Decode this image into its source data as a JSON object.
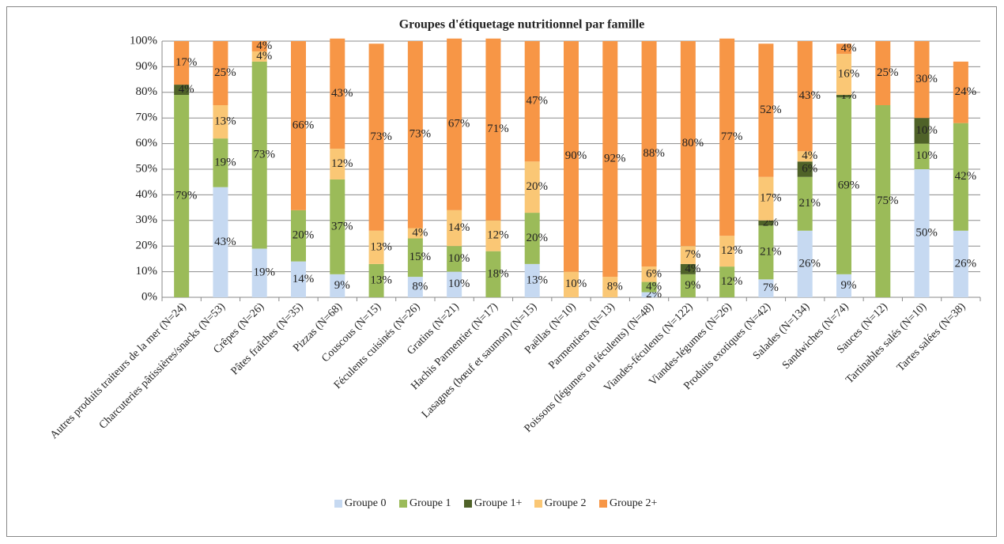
{
  "chart_data": {
    "type": "stacked_bar_100",
    "title": "Groupes d'étiquetage nutritionnel par famille",
    "categories": [
      "Autres produits traiteurs de la mer (N=24)",
      "Charcuteries pâtissières/snacks (N=53)",
      "Crêpes (N=26)",
      "Pâtes fraîches (N=35)",
      "Pizzas (N=68)",
      "Couscous (N=15)",
      "Féculents cuisinés (N=26)",
      "Gratins (N=21)",
      "Hachis Parmentier (N=17)",
      "Lasagnes (bœuf et saumon) (N=15)",
      "Paëllas (N=10)",
      "Parmentiers (N=13)",
      "Poissons (légumes ou féculents) (N=48)",
      "Viandes-féculents (N=122)",
      "Viandes-légumes (N=26)",
      "Produits exotiques (N=42)",
      "Salades (N=134)",
      "Sandwiches (N=74)",
      "Sauces (N=12)",
      "Tartinables salés (N=10)",
      "Tartes salées (N=38)"
    ],
    "series": [
      {
        "name": "Groupe 0",
        "color": "#c6d9f1",
        "values": [
          0,
          43,
          19,
          14,
          9,
          0,
          8,
          10,
          0,
          13,
          0,
          0,
          2,
          0,
          0,
          7,
          26,
          9,
          0,
          50,
          26
        ],
        "value_labels": [
          null,
          "43%",
          "19%",
          "14%",
          "9%",
          null,
          "8%",
          "10%",
          null,
          "13%",
          null,
          null,
          "2%",
          null,
          null,
          "7%",
          "26%",
          "9%",
          null,
          "50%",
          "26%"
        ]
      },
      {
        "name": "Groupe 1",
        "color": "#9bbb59",
        "values": [
          79,
          19,
          73,
          20,
          37,
          13,
          15,
          10,
          18,
          20,
          0,
          0,
          4,
          9,
          12,
          21,
          21,
          69,
          75,
          10,
          42
        ],
        "value_labels": [
          "79%",
          "19%",
          "73%",
          "20%",
          "37%",
          "13%",
          "15%",
          "10%",
          "18%",
          "20%",
          null,
          null,
          "4%",
          "9%",
          "12%",
          "21%",
          "21%",
          "69%",
          "75%",
          "10%",
          "42%"
        ]
      },
      {
        "name": "Groupe 1+",
        "color": "#4f6228",
        "values": [
          4,
          0,
          0,
          0,
          0,
          0,
          0,
          0,
          0,
          0,
          0,
          0,
          0,
          4,
          0,
          2,
          6,
          1,
          0,
          10,
          0
        ],
        "value_labels": [
          "4%",
          null,
          null,
          null,
          null,
          null,
          null,
          null,
          null,
          null,
          null,
          null,
          null,
          "4%",
          null,
          "2%",
          "6%",
          "1%",
          null,
          "10%",
          null
        ]
      },
      {
        "name": "Groupe 2",
        "color": "#fac775",
        "values": [
          0,
          13,
          4,
          0,
          12,
          13,
          4,
          14,
          12,
          20,
          10,
          8,
          6,
          7,
          12,
          17,
          4,
          16,
          0,
          0,
          0
        ],
        "value_labels": [
          null,
          "13%",
          "4%",
          null,
          "12%",
          "13%",
          "4%",
          "14%",
          "12%",
          "20%",
          "10%",
          "8%",
          "6%",
          "7%",
          "12%",
          "17%",
          "4%",
          "16%",
          null,
          null,
          null
        ]
      },
      {
        "name": "Groupe 2+",
        "color": "#f79646",
        "values": [
          17,
          25,
          4,
          66,
          43,
          73,
          73,
          67,
          71,
          47,
          90,
          92,
          88,
          80,
          77,
          52,
          43,
          4,
          25,
          30,
          24
        ],
        "value_labels": [
          "17%",
          "25%",
          "4%",
          "66%",
          "43%",
          "73%",
          "73%",
          "67%",
          "71%",
          "47%",
          "90%",
          "92%",
          "88%",
          "80%",
          "77%",
          "52%",
          "43%",
          "4%",
          "25%",
          "30%",
          "24%"
        ]
      }
    ],
    "ylim": [
      0,
      100
    ],
    "yticks": [
      {
        "value": 0,
        "label": "0%"
      },
      {
        "value": 10,
        "label": "10%"
      },
      {
        "value": 20,
        "label": "20%"
      },
      {
        "value": 30,
        "label": "30%"
      },
      {
        "value": 40,
        "label": "40%"
      },
      {
        "value": 50,
        "label": "50%"
      },
      {
        "value": 60,
        "label": "60%"
      },
      {
        "value": 70,
        "label": "70%"
      },
      {
        "value": 80,
        "label": "80%"
      },
      {
        "value": 90,
        "label": "90%"
      },
      {
        "value": 100,
        "label": "100%"
      }
    ],
    "grid": true,
    "legend": "bottom"
  }
}
